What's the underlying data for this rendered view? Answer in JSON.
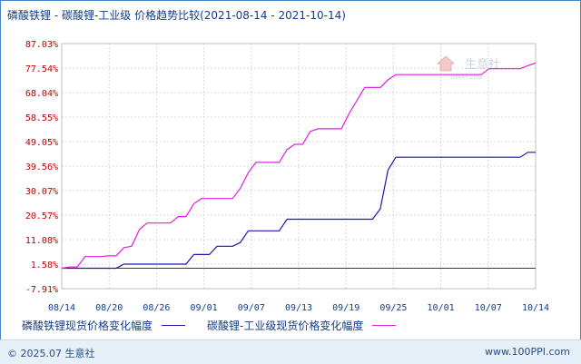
{
  "header": {
    "title": "磷酸铁锂 - 碳酸锂-工业级 价格趋势比较",
    "date_range": "(2021-08-14 - 2021-10-14)"
  },
  "watermark": {
    "text": "生意社",
    "sub": "100PPI.COM"
  },
  "chart_data": {
    "type": "line",
    "title": "磷酸铁锂 - 碳酸锂-工业级 价格趋势比较",
    "x_ticks": [
      "08/14",
      "08/20",
      "08/26",
      "09/01",
      "09/07",
      "09/13",
      "09/19",
      "09/25",
      "10/01",
      "10/07",
      "10/14"
    ],
    "y_ticks": [
      "87.03%",
      "77.54%",
      "68.04%",
      "58.55%",
      "49.05%",
      "39.56%",
      "30.07%",
      "20.57%",
      "11.08%",
      "1.58%",
      "-7.91%"
    ],
    "y_tick_values": [
      87.03,
      77.54,
      68.04,
      58.55,
      49.05,
      39.56,
      30.07,
      20.57,
      11.08,
      1.58,
      -7.91
    ],
    "ylim": [
      -7.91,
      87.03
    ],
    "x_days": 61,
    "grid": true,
    "legend_position": "bottom",
    "series": [
      {
        "name": "磷酸铁锂现货价格变化幅度",
        "color": "#1a1aa6",
        "points": [
          [
            0,
            0
          ],
          [
            2,
            0
          ],
          [
            3,
            0
          ],
          [
            7,
            0
          ],
          [
            8,
            1.6
          ],
          [
            14,
            1.6
          ],
          [
            16,
            1.6
          ],
          [
            17,
            5.3
          ],
          [
            19,
            5.3
          ],
          [
            20,
            8.5
          ],
          [
            22,
            8.5
          ],
          [
            23,
            10
          ],
          [
            24,
            14.5
          ],
          [
            26,
            14.5
          ],
          [
            27,
            14.5
          ],
          [
            28,
            14.5
          ],
          [
            29,
            19
          ],
          [
            31,
            19
          ],
          [
            32,
            19
          ],
          [
            33,
            19
          ],
          [
            34,
            19
          ],
          [
            35,
            19
          ],
          [
            36,
            19
          ],
          [
            37,
            19
          ],
          [
            38,
            19
          ],
          [
            39,
            19
          ],
          [
            40,
            19
          ],
          [
            41,
            23
          ],
          [
            42,
            38
          ],
          [
            43,
            43
          ],
          [
            48,
            43
          ],
          [
            54,
            43
          ],
          [
            58,
            43
          ],
          [
            59,
            43
          ],
          [
            60,
            44.9
          ],
          [
            61,
            44.9
          ]
        ]
      },
      {
        "name": "碳酸锂-工业级现货价格变化幅度",
        "color": "#e020e0",
        "points": [
          [
            0,
            0
          ],
          [
            1,
            0.5
          ],
          [
            2,
            0.5
          ],
          [
            3,
            4.5
          ],
          [
            4,
            4.5
          ],
          [
            5,
            4.5
          ],
          [
            6,
            4.8
          ],
          [
            7,
            4.8
          ],
          [
            8,
            8
          ],
          [
            9,
            8.5
          ],
          [
            10,
            15
          ],
          [
            11,
            17.5
          ],
          [
            12,
            17.5
          ],
          [
            14,
            17.5
          ],
          [
            15,
            20
          ],
          [
            16,
            20
          ],
          [
            17,
            25
          ],
          [
            18,
            27
          ],
          [
            19,
            27
          ],
          [
            20,
            27
          ],
          [
            21,
            27
          ],
          [
            22,
            27
          ],
          [
            23,
            31
          ],
          [
            24,
            37
          ],
          [
            25,
            41
          ],
          [
            26,
            41
          ],
          [
            27,
            41
          ],
          [
            28,
            41
          ],
          [
            29,
            46
          ],
          [
            30,
            48
          ],
          [
            31,
            48
          ],
          [
            32,
            53
          ],
          [
            33,
            54
          ],
          [
            34,
            54
          ],
          [
            35,
            54
          ],
          [
            36,
            54
          ],
          [
            37,
            60
          ],
          [
            38,
            65
          ],
          [
            39,
            70
          ],
          [
            40,
            70
          ],
          [
            41,
            70
          ],
          [
            42,
            73
          ],
          [
            43,
            75
          ],
          [
            44,
            75
          ],
          [
            48,
            75
          ],
          [
            52,
            75
          ],
          [
            54,
            75
          ],
          [
            55,
            77.3
          ],
          [
            59,
            77.3
          ],
          [
            60,
            78.5
          ],
          [
            61,
            79.5
          ]
        ]
      }
    ]
  },
  "legend": {
    "series1_label": "磷酸铁锂现货价格变化幅度",
    "series2_label": "碳酸锂-工业级现货价格变化幅度",
    "series1_color": "#1a1aa6",
    "series2_color": "#e020e0"
  },
  "footer": {
    "copyright": "© 2025.07 生意社",
    "site": "www.100PPI.com"
  },
  "colors": {
    "axis_label_y": "#c00000",
    "axis_label_x": "#123d8c",
    "grid": "#d8d8d8",
    "zero_line": "#3c3c3c"
  }
}
